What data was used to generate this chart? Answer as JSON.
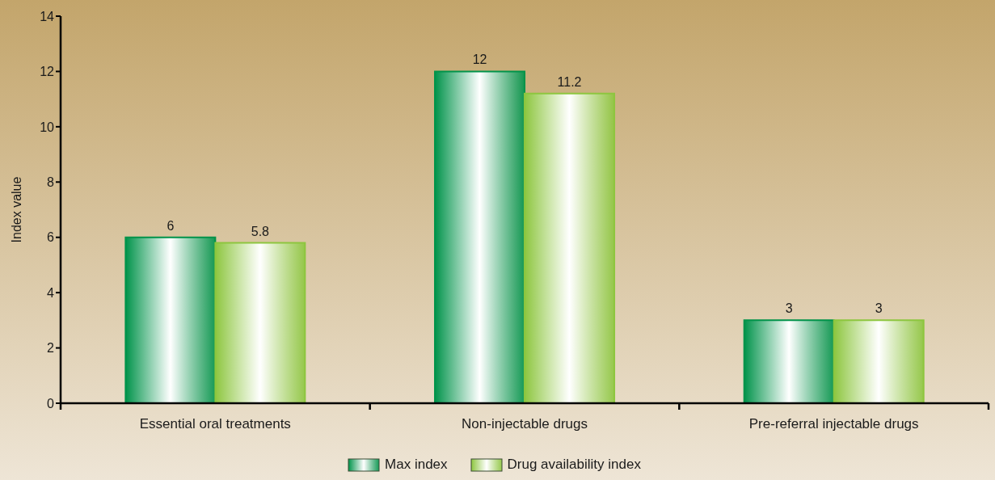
{
  "chart_data": {
    "type": "bar",
    "ylabel": "Index value",
    "categories": [
      "Essential oral treatments",
      "Non-injectable drugs",
      "Pre-referral injectable drugs"
    ],
    "series": [
      {
        "name": "Max index",
        "color": "#00934a",
        "values": [
          6,
          12,
          3
        ]
      },
      {
        "name": "Drug availability index",
        "color": "#8dc63f",
        "values": [
          5.8,
          11.2,
          3
        ]
      }
    ],
    "ylim": [
      0,
      14
    ],
    "yticks": [
      0,
      2,
      4,
      6,
      8,
      10,
      12,
      14
    ],
    "data_labels": true,
    "legend": "bottom",
    "grid": false
  }
}
